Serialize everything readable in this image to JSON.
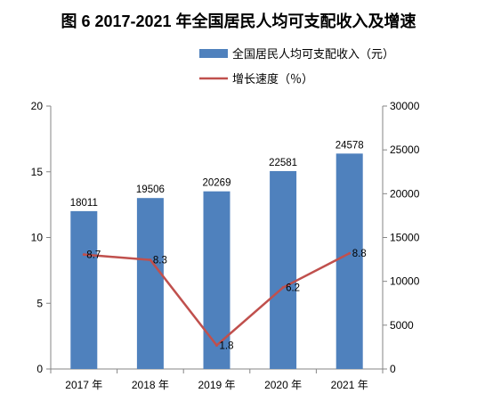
{
  "chart_data": {
    "type": "bar",
    "title": "图 6 2017-2021 年全国居民人均可支配收入及增速",
    "categories": [
      "2017 年",
      "2018 年",
      "2019 年",
      "2020 年",
      "2021 年"
    ],
    "series": [
      {
        "name": "全国居民人均可支配收入（元）",
        "type": "bar",
        "axis": "right",
        "values": [
          18011,
          19506,
          20269,
          22581,
          24578
        ],
        "color": "#4F81BD"
      },
      {
        "name": "增长速度（％）",
        "type": "line",
        "axis": "left",
        "values": [
          8.7,
          8.3,
          1.8,
          6.2,
          8.8
        ],
        "color": "#C0504D"
      }
    ],
    "left_axis": {
      "range": [
        0,
        20
      ],
      "ticks": [
        "0",
        "5",
        "10",
        "15",
        "20"
      ]
    },
    "right_axis": {
      "range": [
        0,
        30000
      ],
      "ticks": [
        "0",
        "5000",
        "10000",
        "15000",
        "20000",
        "25000",
        "30000"
      ]
    },
    "grid": false,
    "legend_position": "top-right"
  }
}
